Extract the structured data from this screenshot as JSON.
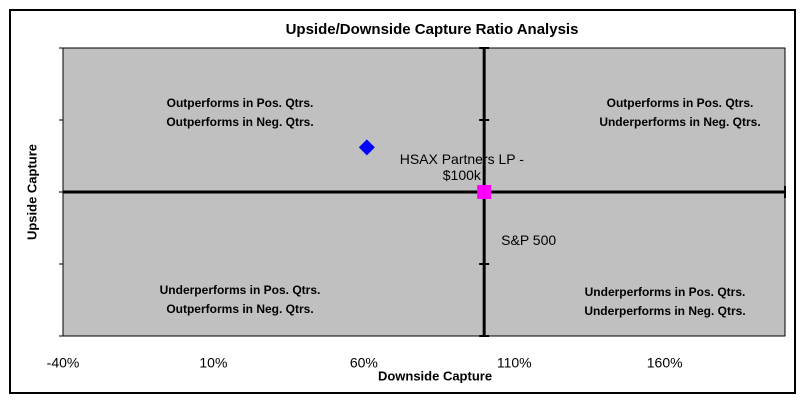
{
  "chart_data": {
    "type": "scatter",
    "title": "Upside/Downside Capture Ratio Analysis",
    "x_label": "Downside Capture",
    "y_label": "Upside Capture",
    "xlim": [
      -40,
      200
    ],
    "xticks": [
      {
        "value": -40,
        "label": "-40%"
      },
      {
        "value": 10,
        "label": "10%"
      },
      {
        "value": 60,
        "label": "60%"
      },
      {
        "value": 110,
        "label": "110%"
      },
      {
        "value": 160,
        "label": "160%"
      }
    ],
    "ylim": [
      0,
      200
    ],
    "yticks": [
      0,
      50,
      100,
      150,
      200
    ],
    "axis_cross": [
      100,
      100
    ],
    "plot_background": "#c0c0c0",
    "series": [
      {
        "name": "HSAX Partners LP - $100k",
        "color": "#0000ff",
        "marker": "diamond",
        "x": [
          61
        ],
        "values": [
          131
        ]
      },
      {
        "name": "S&P 500",
        "color": "#ff00ff",
        "marker": "square",
        "x": [
          100
        ],
        "values": [
          100
        ]
      }
    ],
    "annotations": [
      [
        "Outperforms in Pos. Qtrs.",
        "Outperforms in Neg. Qtrs."
      ],
      [
        "Outperforms in Pos. Qtrs.",
        "Underperforms in Neg. Qtrs."
      ],
      [
        "Underperforms in Pos. Qtrs.",
        "Outperforms in Neg. Qtrs."
      ],
      [
        "Underperforms in Pos. Qtrs.",
        "Underperforms in Neg. Qtrs."
      ]
    ]
  }
}
